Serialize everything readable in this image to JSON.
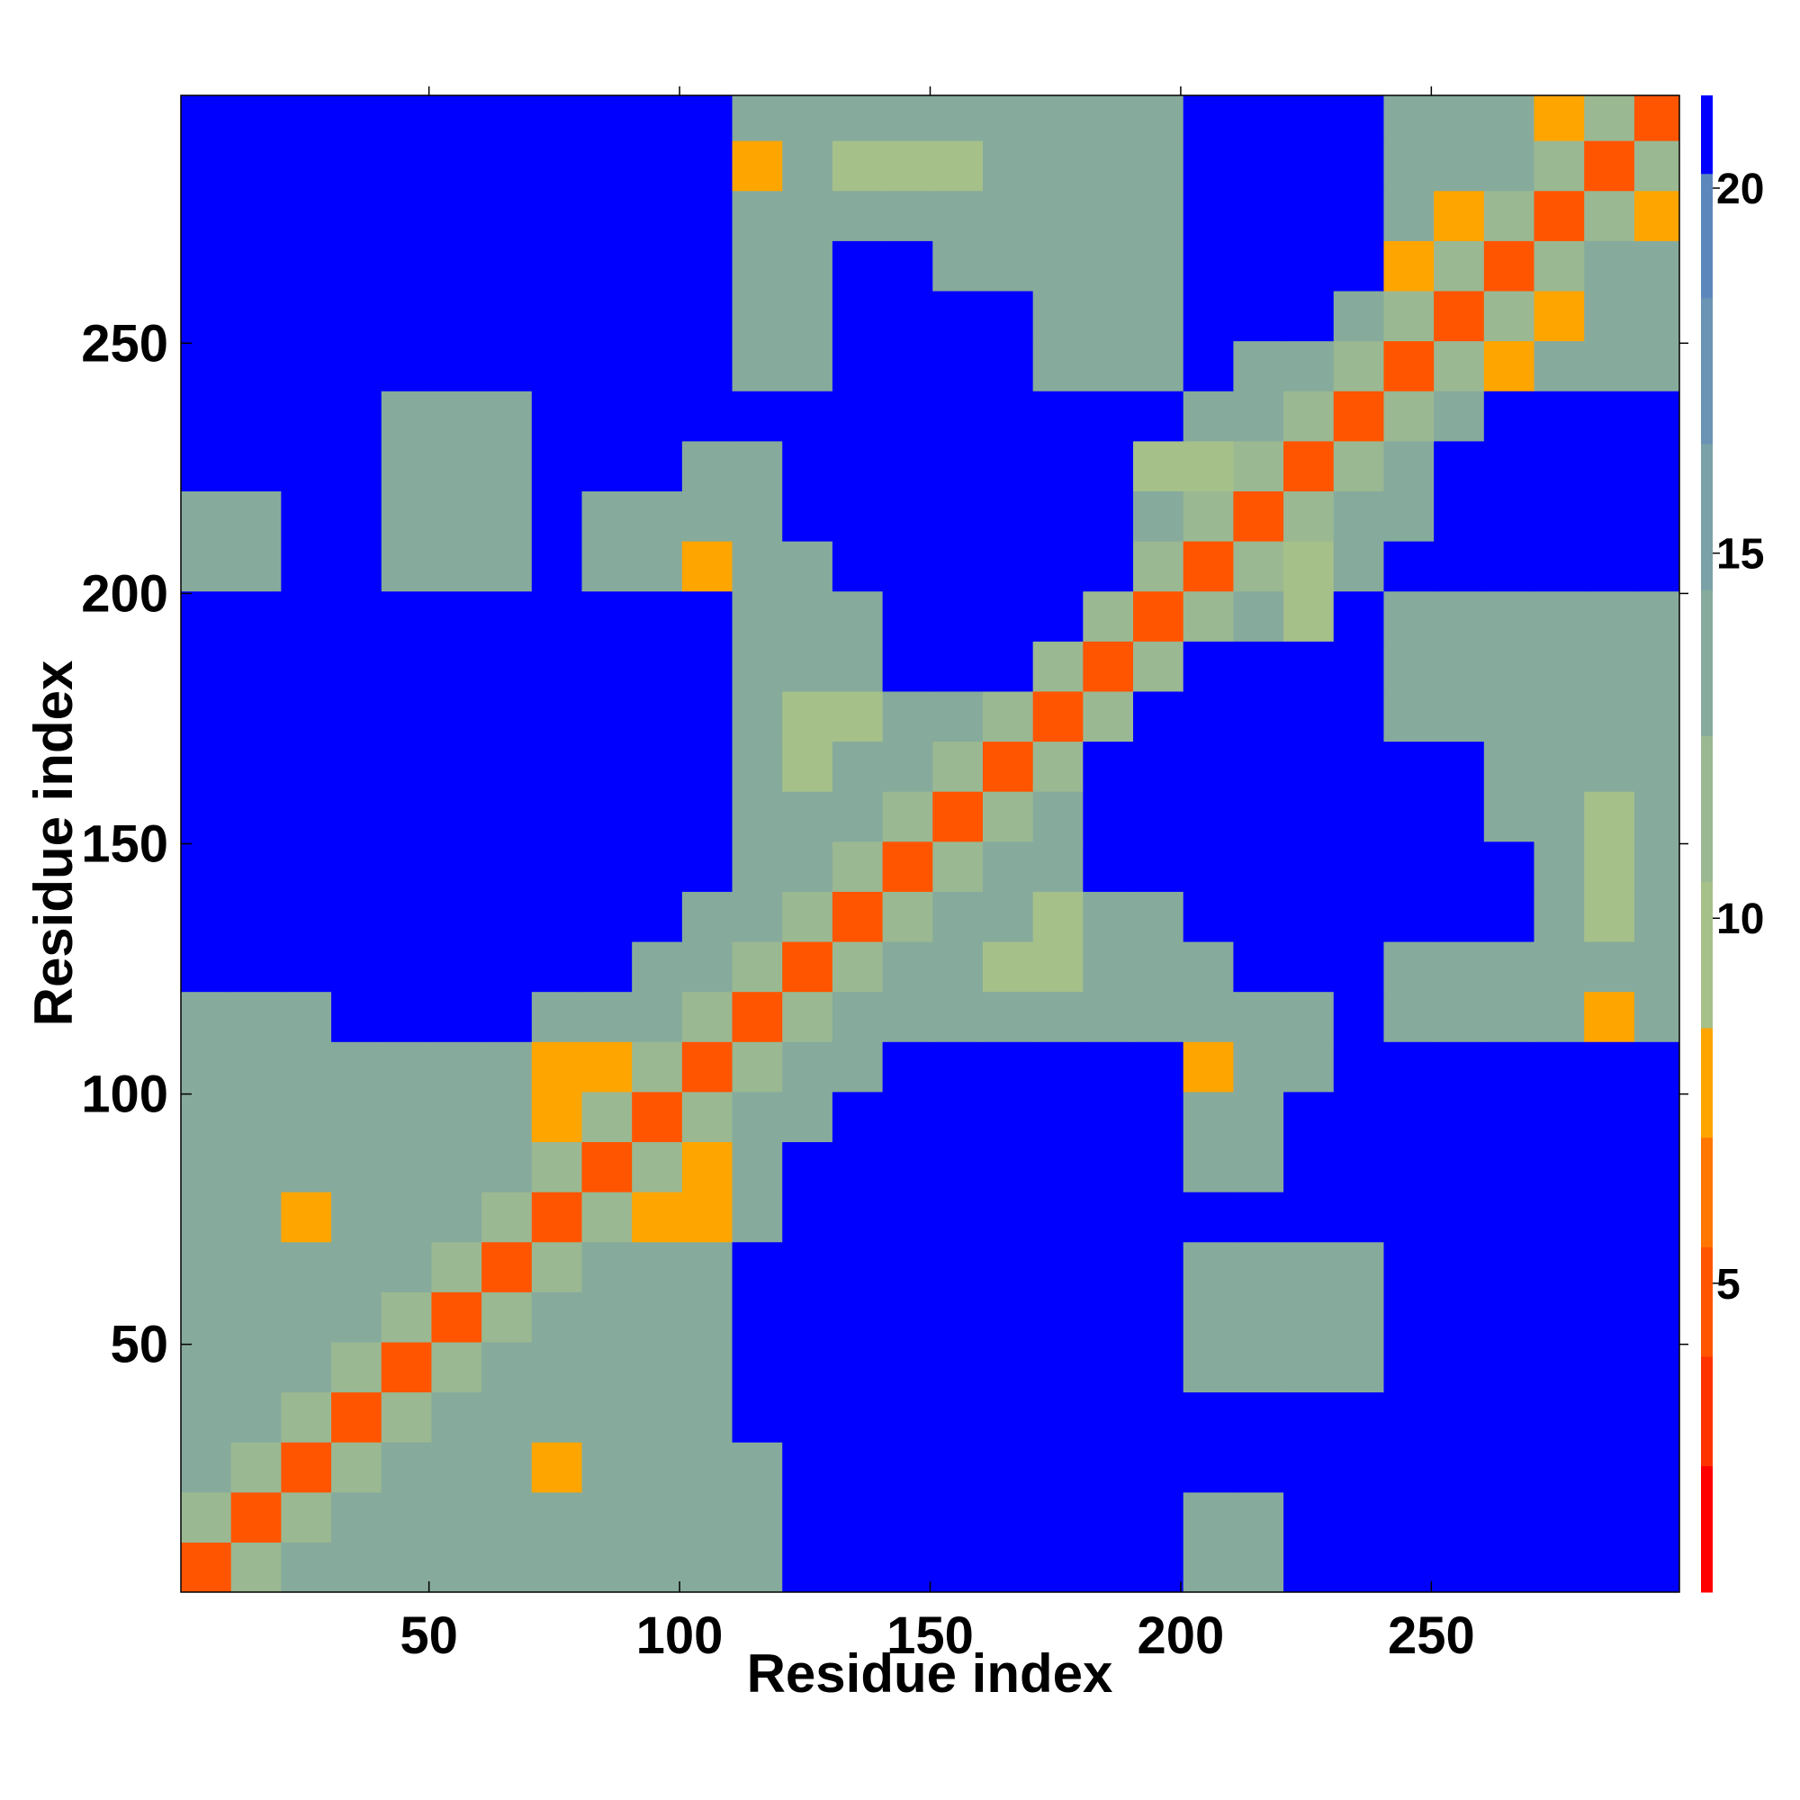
{
  "chart_data": {
    "type": "heatmap",
    "xlabel": "Residue index",
    "ylabel": "Residue index",
    "x": [
      5.5,
      15.5,
      25.5,
      35.5,
      45.5,
      55.5,
      65.5,
      75.5,
      85.5,
      95.5,
      105.5,
      115.5,
      125.5,
      135.5,
      145.5,
      155.5,
      165.5,
      175.5,
      185.5,
      195.5,
      205.5,
      215.5,
      225.5,
      235.5,
      245.5,
      255.5,
      265.5,
      275.5,
      285.5,
      295.5
    ],
    "y": [
      5.5,
      15.5,
      25.5,
      35.5,
      45.5,
      55.5,
      65.5,
      75.5,
      85.5,
      95.5,
      105.5,
      115.5,
      125.5,
      135.5,
      145.5,
      155.5,
      165.5,
      175.5,
      185.5,
      195.5,
      205.5,
      215.5,
      225.5,
      235.5,
      245.5,
      255.5,
      265.5,
      275.5,
      285.5,
      295.5
    ],
    "xlim": [
      0.5,
      299.5
    ],
    "ylim": [
      0.5,
      299.5
    ],
    "xticks": [
      50,
      100,
      150,
      200,
      250
    ],
    "yticks": [
      50,
      100,
      150,
      200,
      250
    ],
    "clim": [
      0.77,
      21.27
    ],
    "cticks": [
      5,
      10,
      15,
      20
    ],
    "color_levels": [
      [
        0.77,
        "#ff0000"
      ],
      [
        2.5,
        "#ff3300"
      ],
      [
        4,
        "#ff5500"
      ],
      [
        5.5,
        "#ff7700"
      ],
      [
        7,
        "#ffa500"
      ],
      [
        8.5,
        "#a6c08a"
      ],
      [
        10.5,
        "#9ab892"
      ],
      [
        12.5,
        "#86ab9c"
      ],
      [
        14.5,
        "#7aa0a8"
      ],
      [
        16.5,
        "#6a93b4"
      ],
      [
        18.5,
        "#5c87bd"
      ],
      [
        20.2,
        "#0000ff"
      ]
    ],
    "values": [
      [
        4,
        12,
        13,
        13,
        13,
        13,
        13,
        13,
        13,
        13,
        13,
        13,
        21,
        21,
        21,
        21,
        21,
        21,
        21,
        21,
        13,
        13,
        21,
        21,
        21,
        21,
        21,
        21,
        21,
        21
      ],
      [
        12,
        4,
        12,
        13,
        13,
        13,
        13,
        13,
        13,
        13,
        13,
        13,
        21,
        21,
        21,
        21,
        21,
        21,
        21,
        21,
        13,
        13,
        21,
        21,
        21,
        21,
        21,
        21,
        21,
        21
      ],
      [
        13,
        12,
        4,
        12,
        13,
        13,
        13,
        8,
        13,
        13,
        13,
        13,
        21,
        21,
        21,
        21,
        21,
        21,
        21,
        21,
        21,
        21,
        21,
        21,
        21,
        21,
        21,
        21,
        21,
        21
      ],
      [
        13,
        13,
        12,
        4,
        12,
        13,
        13,
        13,
        13,
        13,
        13,
        21,
        21,
        21,
        21,
        21,
        21,
        21,
        21,
        21,
        21,
        21,
        21,
        21,
        21,
        21,
        21,
        21,
        21,
        21
      ],
      [
        13,
        13,
        13,
        12,
        4,
        12,
        13,
        13,
        13,
        13,
        13,
        21,
        21,
        21,
        21,
        21,
        21,
        21,
        21,
        21,
        13,
        13,
        13,
        13,
        21,
        21,
        21,
        21,
        21,
        21
      ],
      [
        13,
        13,
        13,
        13,
        12,
        4,
        12,
        13,
        13,
        13,
        13,
        21,
        21,
        21,
        21,
        21,
        21,
        21,
        21,
        21,
        13,
        13,
        13,
        13,
        21,
        21,
        21,
        21,
        21,
        21
      ],
      [
        13,
        13,
        13,
        13,
        13,
        12,
        4,
        12,
        13,
        13,
        13,
        21,
        21,
        21,
        21,
        21,
        21,
        21,
        21,
        21,
        13,
        13,
        13,
        13,
        21,
        21,
        21,
        21,
        21,
        21
      ],
      [
        13,
        13,
        8,
        13,
        13,
        13,
        12,
        4,
        12,
        8,
        8,
        13,
        21,
        21,
        21,
        21,
        21,
        21,
        21,
        21,
        21,
        21,
        21,
        21,
        21,
        21,
        21,
        21,
        21,
        21
      ],
      [
        13,
        13,
        13,
        13,
        13,
        13,
        13,
        12,
        4,
        12,
        8,
        13,
        21,
        21,
        21,
        21,
        21,
        21,
        21,
        21,
        13,
        13,
        21,
        21,
        21,
        21,
        21,
        21,
        21,
        21
      ],
      [
        13,
        13,
        13,
        13,
        13,
        13,
        13,
        8,
        12,
        4,
        12,
        13,
        13,
        21,
        21,
        21,
        21,
        21,
        21,
        21,
        13,
        13,
        21,
        21,
        21,
        21,
        21,
        21,
        21,
        21
      ],
      [
        13,
        13,
        13,
        13,
        13,
        13,
        13,
        8,
        8,
        12,
        4,
        12,
        13,
        13,
        21,
        21,
        21,
        21,
        21,
        21,
        8,
        13,
        13,
        21,
        21,
        21,
        21,
        21,
        21,
        21
      ],
      [
        13,
        13,
        13,
        21,
        21,
        21,
        21,
        13,
        13,
        13,
        12,
        4,
        12,
        13,
        13,
        13,
        13,
        13,
        13,
        13,
        13,
        13,
        13,
        21,
        13,
        13,
        13,
        13,
        8,
        13
      ],
      [
        21,
        21,
        21,
        21,
        21,
        21,
        21,
        21,
        21,
        13,
        13,
        12,
        4,
        12,
        13,
        13,
        9,
        9,
        13,
        13,
        13,
        21,
        21,
        21,
        13,
        13,
        13,
        13,
        13,
        13
      ],
      [
        21,
        21,
        21,
        21,
        21,
        21,
        21,
        21,
        21,
        21,
        13,
        13,
        12,
        4,
        12,
        13,
        13,
        9,
        13,
        13,
        21,
        21,
        21,
        21,
        21,
        21,
        21,
        13,
        9,
        13
      ],
      [
        21,
        21,
        21,
        21,
        21,
        21,
        21,
        21,
        21,
        21,
        21,
        13,
        13,
        12,
        4,
        12,
        13,
        13,
        21,
        21,
        21,
        21,
        21,
        21,
        21,
        21,
        21,
        13,
        9,
        13
      ],
      [
        21,
        21,
        21,
        21,
        21,
        21,
        21,
        21,
        21,
        21,
        21,
        13,
        13,
        13,
        12,
        4,
        12,
        13,
        21,
        21,
        21,
        21,
        21,
        21,
        21,
        21,
        13,
        13,
        9,
        13
      ],
      [
        21,
        21,
        21,
        21,
        21,
        21,
        21,
        21,
        21,
        21,
        21,
        13,
        9,
        13,
        13,
        12,
        4,
        12,
        21,
        21,
        21,
        21,
        21,
        21,
        21,
        21,
        13,
        13,
        13,
        13
      ],
      [
        21,
        21,
        21,
        21,
        21,
        21,
        21,
        21,
        21,
        21,
        21,
        13,
        9,
        9,
        13,
        13,
        12,
        4,
        12,
        21,
        21,
        21,
        21,
        21,
        13,
        13,
        13,
        13,
        13,
        13
      ],
      [
        21,
        21,
        21,
        21,
        21,
        21,
        21,
        21,
        21,
        21,
        21,
        13,
        13,
        13,
        21,
        21,
        21,
        12,
        4,
        12,
        21,
        21,
        21,
        21,
        13,
        13,
        13,
        13,
        13,
        13
      ],
      [
        21,
        21,
        21,
        21,
        21,
        21,
        21,
        21,
        21,
        21,
        21,
        13,
        13,
        13,
        21,
        21,
        21,
        21,
        12,
        4,
        12,
        13,
        9,
        21,
        13,
        13,
        13,
        13,
        13,
        13
      ],
      [
        13,
        13,
        21,
        21,
        13,
        13,
        13,
        21,
        13,
        13,
        8,
        13,
        13,
        21,
        21,
        21,
        21,
        21,
        21,
        12,
        4,
        12,
        9,
        13,
        21,
        21,
        21,
        21,
        21,
        21
      ],
      [
        13,
        13,
        21,
        21,
        13,
        13,
        13,
        21,
        13,
        13,
        13,
        13,
        21,
        21,
        21,
        21,
        21,
        21,
        21,
        13,
        12,
        4,
        12,
        13,
        13,
        21,
        21,
        21,
        21,
        21
      ],
      [
        21,
        21,
        21,
        21,
        13,
        13,
        13,
        21,
        21,
        21,
        13,
        13,
        21,
        21,
        21,
        21,
        21,
        21,
        21,
        9,
        9,
        12,
        4,
        12,
        13,
        21,
        21,
        21,
        21,
        21
      ],
      [
        21,
        21,
        21,
        21,
        13,
        13,
        13,
        21,
        21,
        21,
        21,
        21,
        21,
        21,
        21,
        21,
        21,
        21,
        21,
        21,
        13,
        13,
        12,
        4,
        12,
        13,
        21,
        21,
        21,
        21
      ],
      [
        21,
        21,
        21,
        21,
        21,
        21,
        21,
        21,
        21,
        21,
        21,
        13,
        13,
        21,
        21,
        21,
        21,
        13,
        13,
        13,
        21,
        13,
        13,
        12,
        4,
        12,
        8,
        13,
        13,
        13
      ],
      [
        21,
        21,
        21,
        21,
        21,
        21,
        21,
        21,
        21,
        21,
        21,
        13,
        13,
        21,
        21,
        21,
        21,
        13,
        13,
        13,
        21,
        21,
        21,
        13,
        12,
        4,
        12,
        8,
        13,
        13
      ],
      [
        21,
        21,
        21,
        21,
        21,
        21,
        21,
        21,
        21,
        21,
        21,
        13,
        13,
        21,
        21,
        13,
        13,
        13,
        13,
        13,
        21,
        21,
        21,
        21,
        8,
        12,
        4,
        12,
        13,
        13
      ],
      [
        21,
        21,
        21,
        21,
        21,
        21,
        21,
        21,
        21,
        21,
        21,
        13,
        13,
        13,
        13,
        13,
        13,
        13,
        13,
        13,
        21,
        21,
        21,
        21,
        13,
        8,
        12,
        4,
        12,
        8
      ],
      [
        21,
        21,
        21,
        21,
        21,
        21,
        21,
        21,
        21,
        21,
        21,
        8,
        13,
        9,
        9,
        9,
        13,
        13,
        13,
        13,
        21,
        21,
        21,
        21,
        13,
        13,
        13,
        12,
        4,
        12
      ],
      [
        21,
        21,
        21,
        21,
        21,
        21,
        21,
        21,
        21,
        21,
        21,
        13,
        13,
        13,
        13,
        13,
        13,
        13,
        13,
        13,
        21,
        21,
        21,
        21,
        13,
        13,
        13,
        8,
        12,
        4
      ]
    ]
  }
}
